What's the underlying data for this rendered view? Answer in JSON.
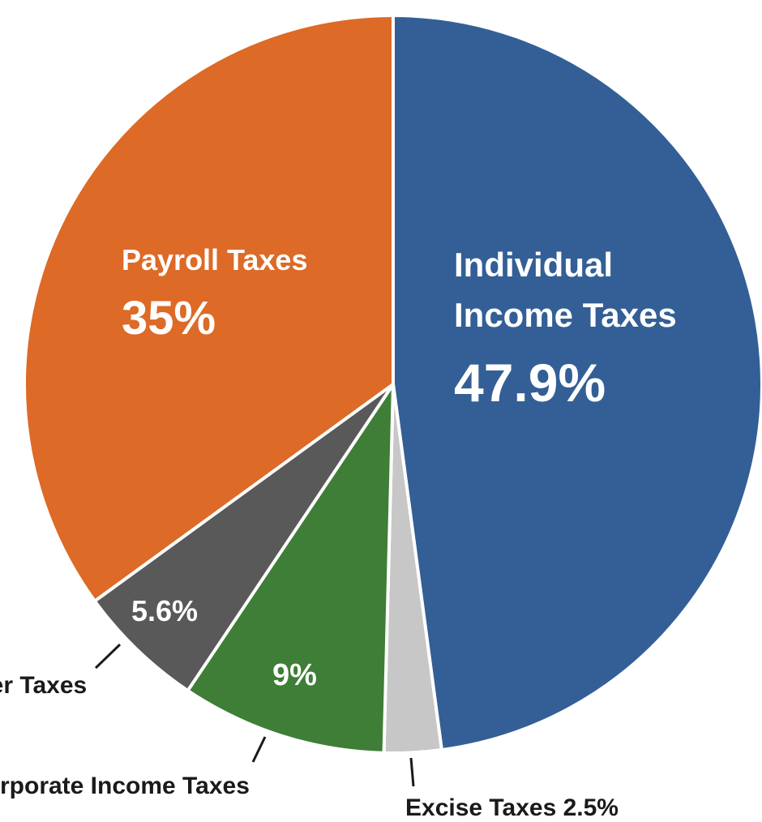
{
  "chart_data": {
    "type": "pie",
    "slices": [
      {
        "name": "Individual Income Taxes",
        "value": 47.9,
        "label": "47.9%",
        "color": "#335f96"
      },
      {
        "name": "Excise Taxes",
        "value": 2.5,
        "label": "2.5%",
        "color": "#c7c7c7"
      },
      {
        "name": "Corporate Income Taxes",
        "value": 9,
        "label": "9%",
        "color": "#3e7e36"
      },
      {
        "name": "Other Taxes",
        "value": 5.6,
        "label": "5.6%",
        "color": "#595959"
      },
      {
        "name": "Payroll Taxes",
        "value": 35,
        "label": "35%",
        "color": "#dd6a26"
      }
    ],
    "start": "12 o'clock",
    "direction": "clockwise"
  },
  "labels": {
    "individual_line1": "Individual",
    "individual_line2": "Income Taxes",
    "individual_value": "47.9%",
    "payroll_name": "Payroll Taxes",
    "payroll_value": "35%",
    "other_value": "5.6%",
    "other_name": "Other Taxes",
    "corporate_value": "9%",
    "corporate_name": "Corporate Income Taxes",
    "excise_name": "Excise Taxes 2.5%"
  }
}
